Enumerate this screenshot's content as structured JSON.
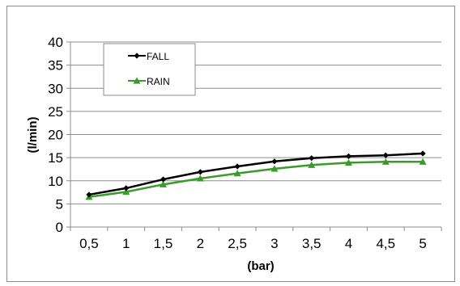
{
  "chart_data": {
    "type": "line",
    "x": [
      "0,5",
      "1",
      "1,5",
      "2",
      "2,5",
      "3",
      "3,5",
      "4",
      "4,5",
      "5"
    ],
    "xlabel": "(bar)",
    "ylabel": "(l/min)",
    "ylim": [
      0,
      40
    ],
    "yticks": [
      "0",
      "5",
      "10",
      "15",
      "20",
      "25",
      "30",
      "35",
      "40"
    ],
    "grid": "horizontal",
    "legend_position": "top-left",
    "series": [
      {
        "name": "FALL",
        "color": "#000000",
        "marker": "diamond",
        "values": [
          7,
          8.4,
          10.3,
          11.9,
          13.1,
          14.2,
          14.9,
          15.3,
          15.5,
          15.9
        ]
      },
      {
        "name": "RAIN",
        "color": "#3a9a2a",
        "marker": "triangle",
        "values": [
          6.5,
          7.6,
          9.2,
          10.5,
          11.6,
          12.6,
          13.4,
          13.9,
          14.1,
          14.1
        ]
      }
    ]
  }
}
